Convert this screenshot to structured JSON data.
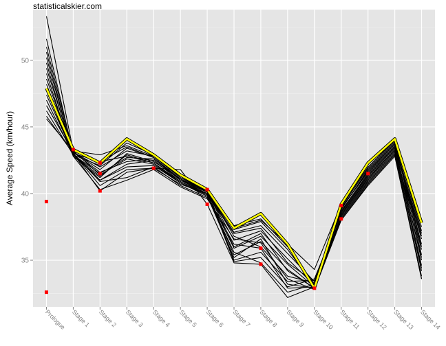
{
  "site_label": "statisticalskier.com",
  "chart_data": {
    "type": "line",
    "title": "",
    "xlabel": "",
    "ylabel": "Average Speed (km/hour)",
    "ylim": [
      31.5,
      53.8
    ],
    "yticks": [
      35,
      40,
      45,
      50
    ],
    "grid": true,
    "legend": "none",
    "categories": [
      "Prologue",
      "Stage 1",
      "Stage 2",
      "Stage 3",
      "Stage 4",
      "Stage 5",
      "Stage 6",
      "Stage 7",
      "Stage 8",
      "Stage 9",
      "Stage 10",
      "Stage 11",
      "Stage 12",
      "Stage 13",
      "Stage 14"
    ],
    "series_black": [
      [
        53.3,
        43.2,
        42.9,
        43.6,
        42.8,
        41.2,
        40.2,
        37.6,
        38.1,
        36.0,
        33.2,
        39.1,
        42.0,
        44.0,
        37.5
      ],
      [
        51.6,
        43.0,
        42.4,
        42.8,
        42.3,
        40.9,
        40.0,
        37.1,
        37.6,
        35.5,
        33.4,
        38.9,
        41.6,
        43.7,
        37.0
      ],
      [
        51.0,
        43.1,
        41.6,
        42.4,
        42.6,
        41.0,
        40.1,
        36.5,
        37.2,
        35.1,
        33.1,
        38.6,
        41.4,
        43.5,
        36.6
      ],
      [
        50.6,
        42.9,
        41.0,
        42.0,
        42.1,
        40.8,
        39.9,
        35.9,
        36.8,
        34.7,
        33.0,
        38.8,
        41.8,
        43.8,
        36.2
      ],
      [
        50.2,
        43.0,
        40.6,
        41.8,
        41.9,
        40.7,
        40.0,
        35.4,
        36.4,
        34.3,
        32.9,
        38.4,
        41.2,
        43.3,
        35.8
      ],
      [
        49.8,
        42.8,
        41.2,
        43.0,
        42.4,
        41.1,
        40.2,
        36.8,
        36.0,
        33.8,
        33.3,
        39.0,
        41.9,
        43.9,
        35.4
      ],
      [
        49.4,
        43.1,
        41.8,
        43.4,
        42.7,
        41.0,
        40.3,
        35.0,
        35.6,
        33.4,
        33.5,
        38.7,
        41.5,
        43.6,
        35.0
      ],
      [
        49.0,
        42.9,
        42.1,
        43.8,
        42.9,
        41.3,
        40.1,
        34.9,
        35.2,
        33.0,
        33.6,
        38.5,
        41.3,
        43.4,
        34.6
      ],
      [
        48.6,
        43.2,
        41.4,
        42.6,
        42.2,
        40.8,
        39.8,
        35.6,
        34.8,
        32.6,
        33.2,
        38.3,
        41.0,
        43.2,
        34.2
      ],
      [
        48.2,
        43.0,
        40.9,
        41.2,
        42.0,
        40.6,
        39.7,
        36.2,
        35.9,
        32.9,
        33.0,
        38.1,
        40.8,
        43.0,
        33.8
      ],
      [
        47.8,
        42.8,
        40.3,
        41.0,
        41.8,
        40.5,
        39.6,
        36.6,
        36.3,
        33.6,
        32.8,
        38.0,
        40.6,
        42.8,
        33.6
      ],
      [
        47.4,
        43.0,
        41.0,
        42.2,
        42.5,
        40.9,
        39.9,
        37.0,
        37.4,
        34.8,
        33.4,
        38.9,
        41.7,
        43.7,
        36.0
      ],
      [
        47.0,
        42.9,
        41.5,
        42.7,
        42.6,
        41.0,
        40.0,
        37.3,
        37.9,
        35.8,
        33.1,
        38.6,
        41.4,
        43.5,
        36.8
      ],
      [
        46.6,
        43.1,
        42.0,
        43.2,
        42.8,
        41.2,
        40.2,
        36.0,
        37.0,
        34.2,
        32.9,
        38.4,
        41.1,
        43.3,
        35.2
      ],
      [
        46.2,
        42.9,
        41.3,
        42.9,
        42.3,
        40.8,
        39.8,
        35.2,
        36.6,
        33.2,
        32.9,
        38.2,
        40.9,
        43.1,
        34.4
      ],
      [
        45.8,
        43.0,
        40.2,
        41.6,
        41.9,
        41.8,
        39.2,
        34.8,
        34.7,
        32.2,
        33.0,
        38.0,
        40.7,
        42.9,
        33.6
      ],
      [
        45.6,
        43.2,
        42.4,
        43.5,
        42.7,
        41.1,
        40.1,
        37.4,
        38.0,
        36.2,
        34.3,
        39.2,
        42.2,
        44.0,
        37.2
      ]
    ],
    "series_highlight": [
      47.9,
      43.3,
      42.3,
      44.1,
      42.9,
      41.4,
      40.3,
      37.4,
      38.5,
      36.2,
      32.9,
      39.2,
      42.3,
      44.1,
      37.8
    ],
    "points_red": [
      {
        "x": "Prologue",
        "y": 39.4
      },
      {
        "x": "Prologue",
        "y": 32.6
      },
      {
        "x": "Stage 1",
        "y": 43.3
      },
      {
        "x": "Stage 2",
        "y": 42.3
      },
      {
        "x": "Stage 2",
        "y": 41.5
      },
      {
        "x": "Stage 2",
        "y": 40.2
      },
      {
        "x": "Stage 4",
        "y": 41.9
      },
      {
        "x": "Stage 6",
        "y": 40.3
      },
      {
        "x": "Stage 6",
        "y": 39.2
      },
      {
        "x": "Stage 8",
        "y": 35.9
      },
      {
        "x": "Stage 8",
        "y": 34.7
      },
      {
        "x": "Stage 10",
        "y": 32.9
      },
      {
        "x": "Stage 11",
        "y": 39.1
      },
      {
        "x": "Stage 11",
        "y": 38.1
      },
      {
        "x": "Stage 12",
        "y": 41.5
      }
    ],
    "colors": {
      "panel_bg": "#e5e5e5",
      "grid_major": "#ffffff",
      "grid_minor": "#f2f2f2",
      "series": "#000000",
      "highlight": "#ffff00",
      "points": "#ff0000",
      "tick_label": "#7f7f7f"
    }
  }
}
